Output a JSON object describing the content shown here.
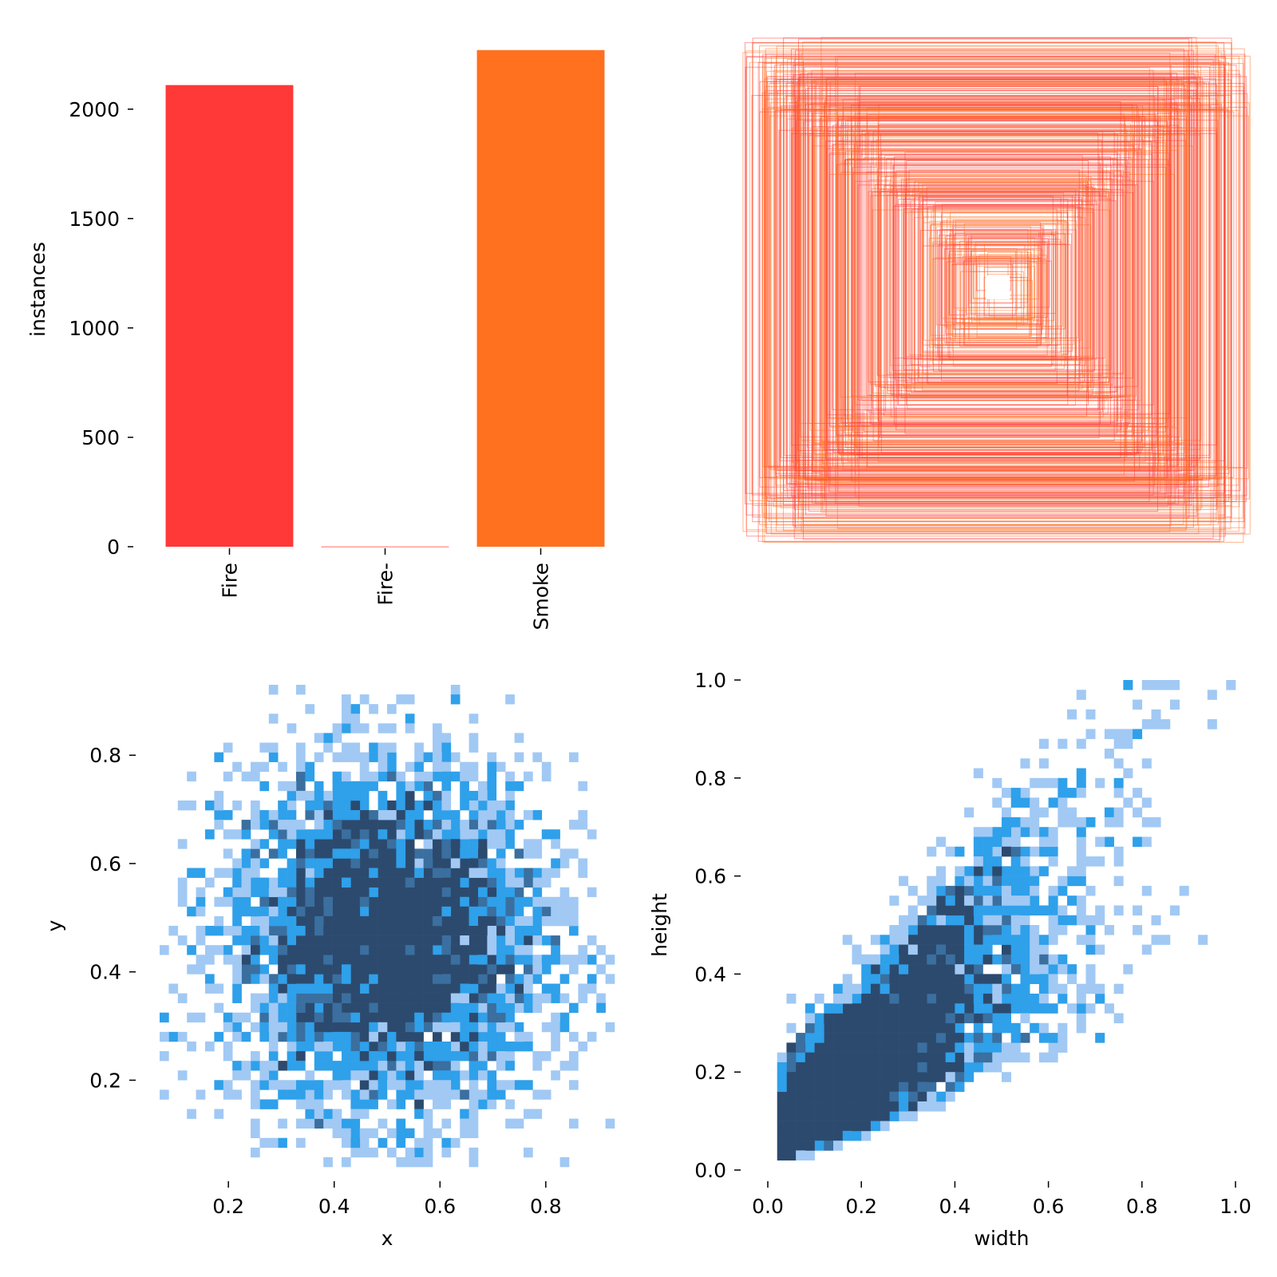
{
  "chart_data": [
    {
      "type": "bar",
      "title": "",
      "ylabel": "instances",
      "categories": [
        "Fire",
        "Fire-",
        "Smoke"
      ],
      "values": [
        2110,
        2,
        2270
      ],
      "colors": [
        "#ff3838",
        "#ff9d97",
        "#ff701f"
      ],
      "yticks": [
        0,
        500,
        1000,
        1500,
        2000
      ],
      "ytick_labels": [
        "0",
        "500",
        "1000",
        "1500",
        "2000"
      ],
      "ylim": [
        0,
        2280
      ]
    },
    {
      "type": "boxes",
      "title": "",
      "description_colors": [
        "#ff3838",
        "#ff701f"
      ]
    },
    {
      "type": "heatmap",
      "xlabel": "x",
      "ylabel": "y",
      "xlim": [
        0.07,
        0.93
      ],
      "ylim": [
        0.04,
        0.93
      ],
      "xticks": [
        0.2,
        0.4,
        0.6,
        0.8
      ],
      "xtick_labels": [
        "0.2",
        "0.4",
        "0.6",
        "0.8"
      ],
      "yticks": [
        0.2,
        0.4,
        0.6,
        0.8
      ],
      "ytick_labels": [
        "0.2",
        "0.4",
        "0.6",
        "0.8"
      ],
      "bins": 50,
      "distribution": {
        "center_x": 0.5,
        "center_y": 0.46,
        "spread_x": 0.15,
        "spread_y": 0.16
      },
      "colors": [
        "#a1c9f4",
        "#2fa0ea",
        "#3a6f9f",
        "#2c4a6e"
      ]
    },
    {
      "type": "heatmap",
      "xlabel": "width",
      "ylabel": "height",
      "xlim": [
        0.0,
        1.0
      ],
      "ylim": [
        0.0,
        1.0
      ],
      "xticks": [
        0.0,
        0.2,
        0.4,
        0.6,
        0.8,
        1.0
      ],
      "xtick_labels": [
        "0.0",
        "0.2",
        "0.4",
        "0.6",
        "0.8",
        "1.0"
      ],
      "yticks": [
        0.0,
        0.2,
        0.4,
        0.6,
        0.8,
        1.0
      ],
      "ytick_labels": [
        "0.0",
        "0.2",
        "0.4",
        "0.6",
        "0.8",
        "1.0"
      ],
      "bins": 50,
      "distribution": {
        "concentration": "lower-left",
        "trend": "height increases with width"
      },
      "colors": [
        "#a1c9f4",
        "#2fa0ea",
        "#3a6f9f",
        "#2c4a6e"
      ]
    }
  ]
}
